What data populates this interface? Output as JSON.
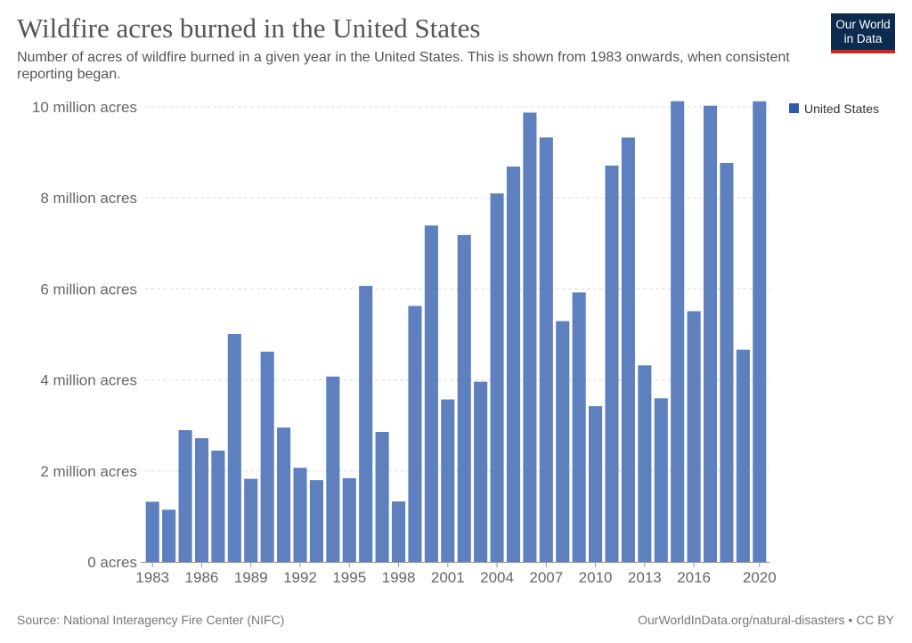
{
  "header": {
    "title": "Wildfire acres burned in the United States",
    "subtitle": "Number of acres of wildfire burned in a given year in the United States. This is shown from 1983 onwards, when consistent reporting began."
  },
  "logo": {
    "line1": "Our World",
    "line2": "in Data",
    "bg_color": "#0d2a4f",
    "accent_color": "#ce261e"
  },
  "footer": {
    "source": "Source: National Interagency Fire Center (NIFC)",
    "link": "OurWorldInData.org/natural-disasters • CC BY"
  },
  "chart_data": {
    "type": "bar",
    "title": "Wildfire acres burned in the United States",
    "xlabel": "",
    "ylabel": "",
    "ylim": [
      0,
      10000000
    ],
    "yticks": [
      0,
      2000000,
      4000000,
      6000000,
      8000000,
      10000000
    ],
    "ytick_labels": [
      "0 acres",
      "2 million acres",
      "4 million acres",
      "6 million acres",
      "8 million acres",
      "10 million acres"
    ],
    "xtick_labels": [
      "1983",
      "1986",
      "1989",
      "1992",
      "1995",
      "1998",
      "2001",
      "2004",
      "2007",
      "2010",
      "2013",
      "2016",
      "2020"
    ],
    "grid": true,
    "legend": {
      "position": "top-right",
      "entries": [
        "United States"
      ]
    },
    "series": [
      {
        "name": "United States",
        "color": "#4c72b7",
        "categories": [
          "1983",
          "1984",
          "1985",
          "1986",
          "1987",
          "1988",
          "1989",
          "1990",
          "1991",
          "1992",
          "1993",
          "1994",
          "1995",
          "1996",
          "1997",
          "1998",
          "1999",
          "2000",
          "2001",
          "2002",
          "2003",
          "2004",
          "2005",
          "2006",
          "2007",
          "2008",
          "2009",
          "2010",
          "2011",
          "2012",
          "2013",
          "2014",
          "2015",
          "2016",
          "2017",
          "2018",
          "2019",
          "2020"
        ],
        "values": [
          1323666,
          1148409,
          2896147,
          2719162,
          2447296,
          5009290,
          1827310,
          4621621,
          2953578,
          2069929,
          1797574,
          4073579,
          1840546,
          6065998,
          2856959,
          1329704,
          5626093,
          7393493,
          3570911,
          7184712,
          3960842,
          8097880,
          8689389,
          9873745,
          9328045,
          5292468,
          5921786,
          3422724,
          8711367,
          9326238,
          4319546,
          3595613,
          10125149,
          5509995,
          10026086,
          8767492,
          4664364,
          10122336
        ]
      }
    ]
  }
}
